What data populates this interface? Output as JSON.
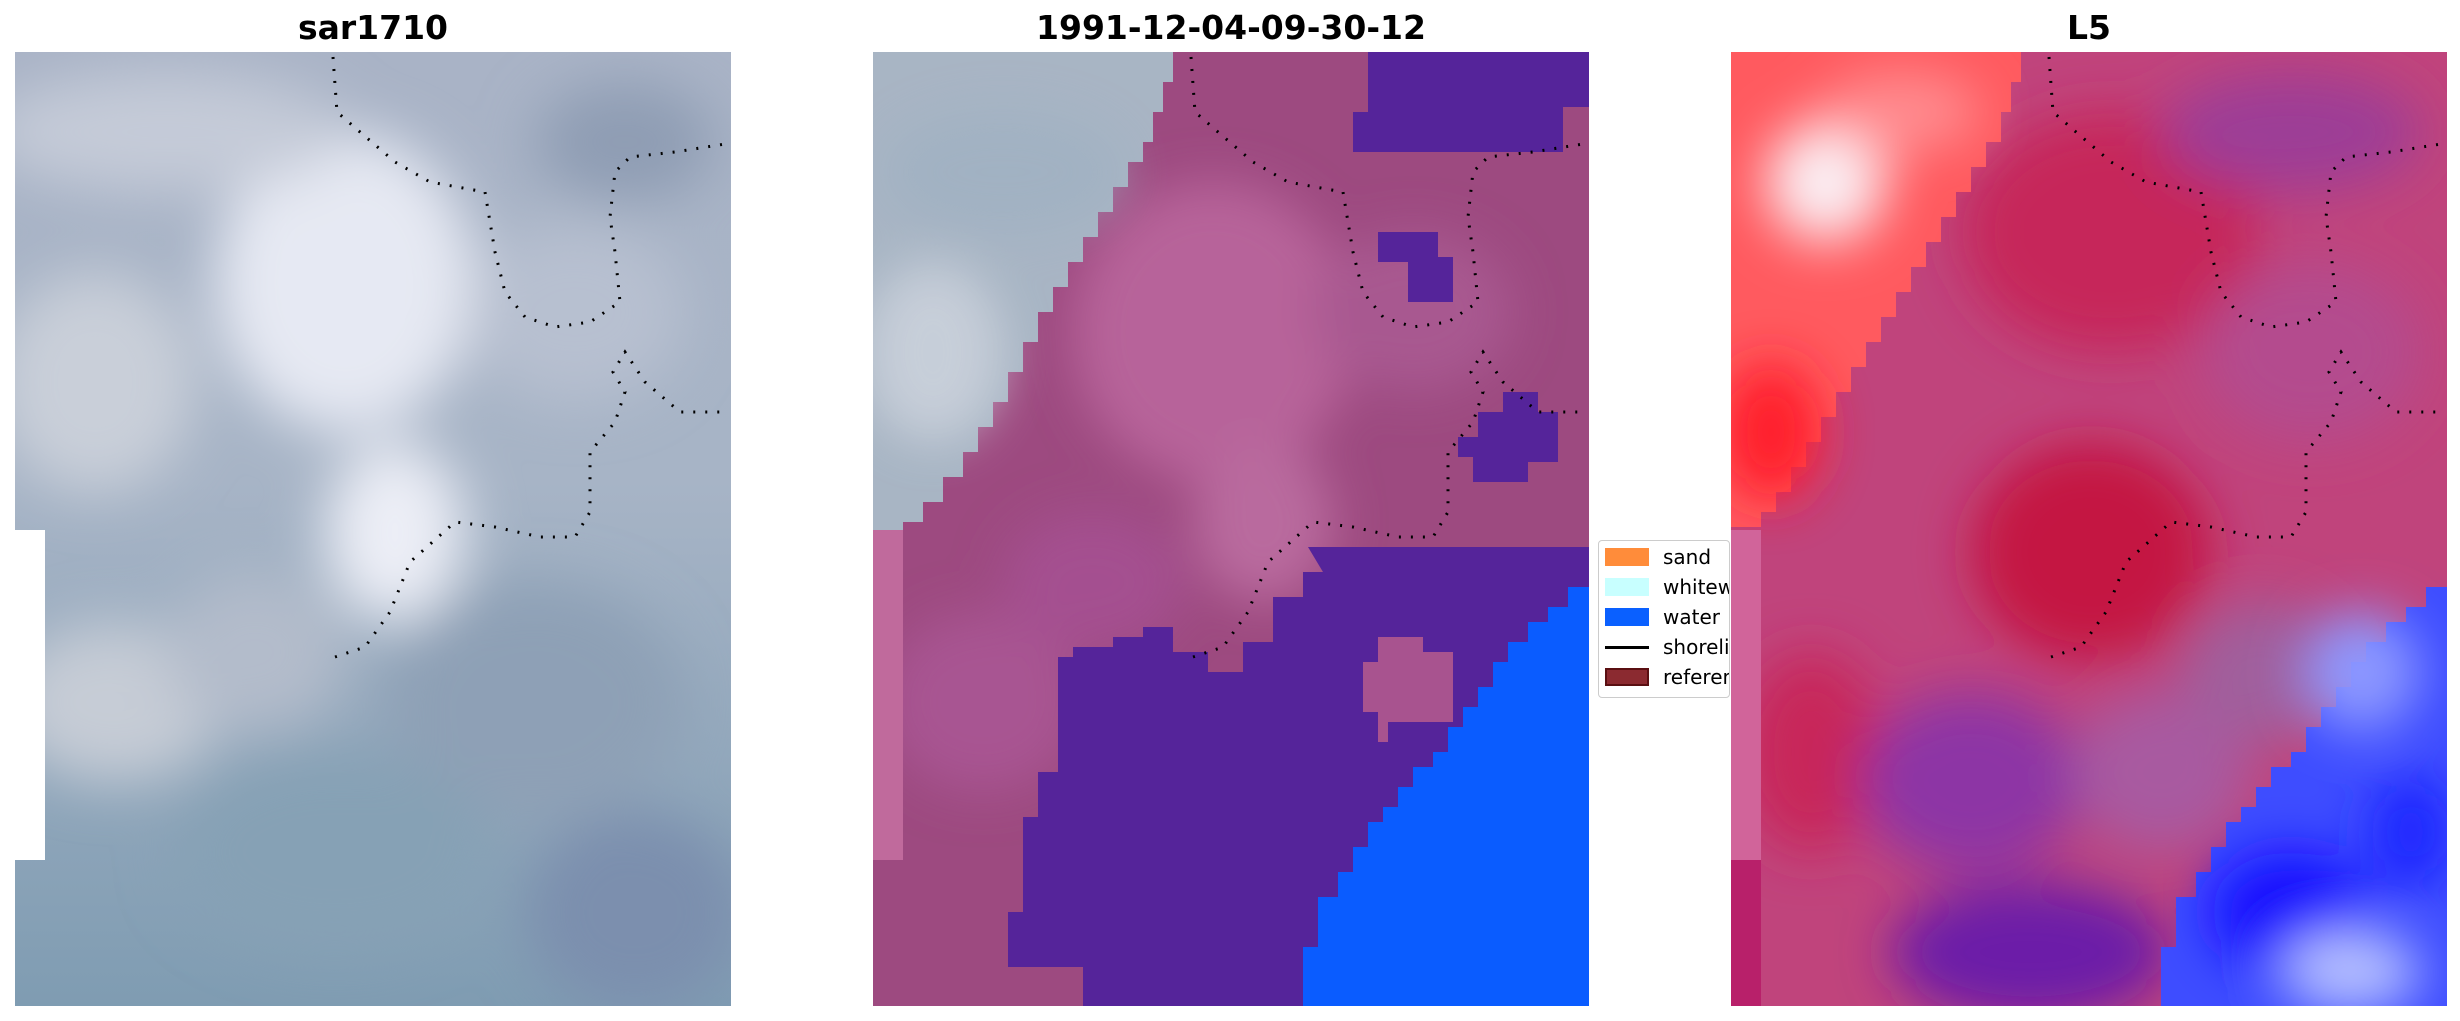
{
  "panels": [
    {
      "title": "sar1710"
    },
    {
      "title": "1991-12-04-09-30-12"
    },
    {
      "title": "L5"
    }
  ],
  "legend": {
    "items": [
      {
        "label": "sand",
        "color": "#ff8c3a"
      },
      {
        "label": "whitewater",
        "color": "#c8ffff"
      },
      {
        "label": "water",
        "color": "#0a60ff"
      },
      {
        "label": "shoreline",
        "color": "#000000"
      },
      {
        "label": "reference",
        "color": "#8b2a30"
      }
    ]
  }
}
